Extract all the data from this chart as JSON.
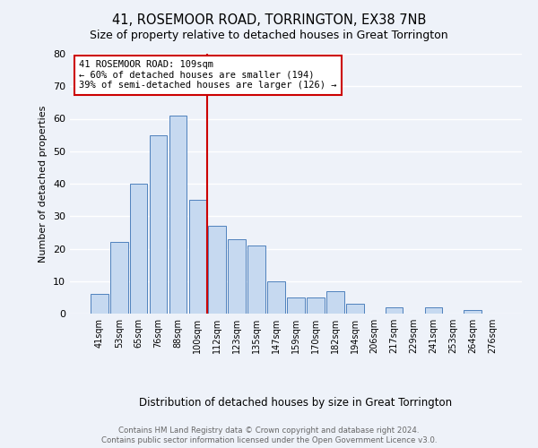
{
  "title": "41, ROSEMOOR ROAD, TORRINGTON, EX38 7NB",
  "subtitle": "Size of property relative to detached houses in Great Torrington",
  "xlabel": "Distribution of detached houses by size in Great Torrington",
  "ylabel": "Number of detached properties",
  "bar_labels": [
    "41sqm",
    "53sqm",
    "65sqm",
    "76sqm",
    "88sqm",
    "100sqm",
    "112sqm",
    "123sqm",
    "135sqm",
    "147sqm",
    "159sqm",
    "170sqm",
    "182sqm",
    "194sqm",
    "206sqm",
    "217sqm",
    "229sqm",
    "241sqm",
    "253sqm",
    "264sqm",
    "276sqm"
  ],
  "bar_heights": [
    6,
    22,
    40,
    55,
    61,
    35,
    27,
    23,
    21,
    10,
    5,
    5,
    7,
    3,
    0,
    2,
    0,
    2,
    0,
    1,
    0
  ],
  "bar_color": "#c6d9f0",
  "bar_edge_color": "#4f81bd",
  "vline_x_index": 6,
  "vline_color": "#cc0000",
  "ylim": [
    0,
    80
  ],
  "yticks": [
    0,
    10,
    20,
    30,
    40,
    50,
    60,
    70,
    80
  ],
  "annotation_title": "41 ROSEMOOR ROAD: 109sqm",
  "annotation_line1": "← 60% of detached houses are smaller (194)",
  "annotation_line2": "39% of semi-detached houses are larger (126) →",
  "annotation_box_color": "#ffffff",
  "annotation_box_edge": "#cc0000",
  "footer1": "Contains HM Land Registry data © Crown copyright and database right 2024.",
  "footer2": "Contains public sector information licensed under the Open Government Licence v3.0.",
  "background_color": "#eef2f9",
  "grid_color": "#ffffff",
  "title_fontsize": 10.5,
  "subtitle_fontsize": 9
}
